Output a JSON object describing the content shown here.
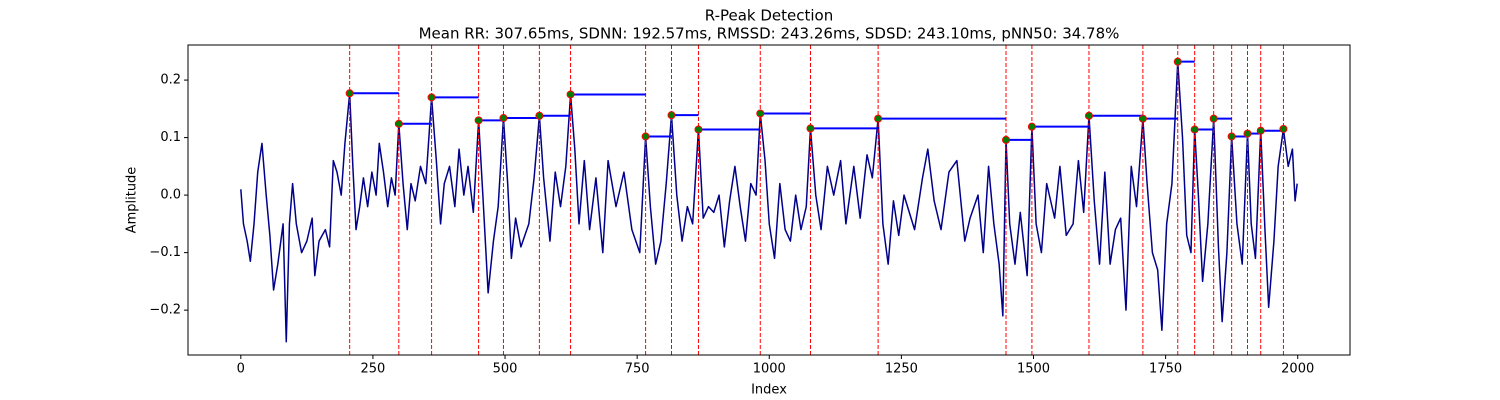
{
  "chart_data": {
    "type": "line",
    "title": "R-Peak Detection",
    "subtitle": "Mean RR: 307.65ms, SDNN: 192.57ms, RMSSD: 243.26ms, SDSD: 243.10ms, pNN50: 34.78%",
    "x_label": "Index",
    "y_label": "Amplitude",
    "xlim": [
      -99.95,
      2098.95
    ],
    "ylim": [
      -0.278,
      0.261
    ],
    "xticks": [
      0,
      250,
      500,
      750,
      1000,
      1250,
      1500,
      1750,
      2000
    ],
    "yticks": [
      {
        "value": -0.2,
        "label": "−0.2"
      },
      {
        "value": -0.1,
        "label": "−0.1"
      },
      {
        "value": 0,
        "label": "0.0"
      },
      0.1,
      0.2
    ],
    "series": [
      {
        "mode": "line",
        "color": "#00008b",
        "x": [
          0,
          5,
          12,
          18,
          25,
          32,
          40,
          48,
          55,
          62,
          70,
          80,
          86,
          92,
          98,
          105,
          115,
          125,
          135,
          140,
          148,
          160,
          168,
          175,
          182,
          190,
          197,
          206,
          212,
          218,
          225,
          232,
          240,
          248,
          256,
          262,
          270,
          278,
          285,
          292,
          299,
          307,
          315,
          322,
          330,
          340,
          350,
          361,
          370,
          378,
          385,
          395,
          405,
          413,
          422,
          430,
          440,
          450,
          458,
          468,
          478,
          487,
          497,
          505,
          512,
          520,
          530,
          545,
          555,
          565,
          573,
          585,
          595,
          605,
          615,
          624,
          632,
          640,
          650,
          660,
          672,
          685,
          695,
          710,
          725,
          740,
          755,
          766,
          775,
          785,
          795,
          805,
          815,
          825,
          835,
          845,
          855,
          866,
          875,
          885,
          895,
          905,
          915,
          925,
          935,
          945,
          955,
          965,
          975,
          983,
          992,
          1000,
          1010,
          1020,
          1030,
          1040,
          1050,
          1060,
          1070,
          1078,
          1088,
          1098,
          1110,
          1122,
          1135,
          1145,
          1160,
          1172,
          1185,
          1195,
          1206,
          1215,
          1225,
          1235,
          1245,
          1255,
          1265,
          1275,
          1290,
          1300,
          1312,
          1325,
          1340,
          1355,
          1370,
          1380,
          1395,
          1405,
          1415,
          1425,
          1435,
          1442,
          1448,
          1455,
          1465,
          1475,
          1488,
          1497,
          1505,
          1515,
          1525,
          1540,
          1550,
          1562,
          1575,
          1585,
          1595,
          1605,
          1615,
          1625,
          1635,
          1645,
          1655,
          1665,
          1675,
          1685,
          1695,
          1707,
          1715,
          1725,
          1735,
          1743,
          1752,
          1762,
          1773,
          1782,
          1790,
          1798,
          1805,
          1812,
          1820,
          1830,
          1841,
          1850,
          1857,
          1866,
          1875,
          1885,
          1895,
          1905,
          1912,
          1920,
          1930,
          1938,
          1945,
          1955,
          1963,
          1973,
          1982,
          1990,
          1995,
          1999
        ],
        "values": [
          0.01,
          -0.05,
          -0.08,
          -0.115,
          -0.05,
          0.04,
          0.09,
          0.0,
          -0.07,
          -0.165,
          -0.12,
          -0.05,
          -0.255,
          -0.05,
          0.02,
          -0.05,
          -0.1,
          -0.08,
          -0.04,
          -0.14,
          -0.08,
          -0.06,
          -0.09,
          0.06,
          0.04,
          0.0,
          0.09,
          0.177,
          0.05,
          -0.06,
          -0.02,
          0.03,
          -0.02,
          0.04,
          0.0,
          0.09,
          0.04,
          -0.02,
          0.03,
          0.0,
          0.124,
          0.02,
          -0.06,
          0.02,
          -0.01,
          0.05,
          0.02,
          0.17,
          0.06,
          -0.05,
          0.02,
          0.05,
          -0.02,
          0.08,
          0.0,
          0.05,
          -0.03,
          0.13,
          0.0,
          -0.17,
          -0.08,
          -0.02,
          0.134,
          0.02,
          -0.11,
          -0.04,
          -0.09,
          -0.05,
          0.03,
          0.138,
          0.03,
          -0.08,
          0.04,
          -0.02,
          0.05,
          0.175,
          0.08,
          -0.05,
          0.06,
          -0.06,
          0.03,
          -0.1,
          0.06,
          -0.02,
          0.04,
          -0.06,
          -0.1,
          0.102,
          -0.02,
          -0.12,
          -0.08,
          0.02,
          0.139,
          0.0,
          -0.08,
          -0.02,
          -0.05,
          0.114,
          -0.04,
          -0.02,
          -0.03,
          0.0,
          -0.09,
          -0.01,
          0.05,
          -0.02,
          -0.08,
          0.02,
          0.0,
          0.142,
          0.06,
          -0.05,
          -0.11,
          0.02,
          -0.06,
          -0.08,
          0.0,
          -0.06,
          -0.02,
          0.116,
          0.0,
          -0.06,
          0.05,
          0.0,
          0.06,
          -0.05,
          0.05,
          -0.04,
          0.07,
          0.03,
          0.133,
          -0.05,
          -0.12,
          -0.01,
          -0.07,
          0.0,
          -0.03,
          -0.06,
          0.03,
          0.08,
          -0.01,
          -0.06,
          0.04,
          0.06,
          -0.08,
          -0.04,
          0.0,
          -0.1,
          0.05,
          -0.05,
          -0.12,
          -0.21,
          0.096,
          -0.05,
          -0.12,
          -0.03,
          -0.14,
          0.119,
          -0.05,
          -0.1,
          0.02,
          -0.04,
          0.05,
          -0.07,
          -0.05,
          0.06,
          -0.03,
          0.138,
          -0.01,
          -0.12,
          0.04,
          -0.12,
          -0.06,
          -0.04,
          -0.2,
          0.05,
          -0.02,
          0.133,
          0.02,
          -0.1,
          -0.13,
          -0.235,
          -0.05,
          0.02,
          0.232,
          0.1,
          -0.07,
          -0.1,
          0.114,
          0.0,
          -0.15,
          -0.05,
          0.133,
          -0.09,
          -0.22,
          -0.1,
          0.102,
          -0.05,
          -0.12,
          0.107,
          -0.05,
          -0.11,
          0.112,
          -0.06,
          -0.195,
          -0.08,
          0.05,
          0.115,
          0.05,
          0.08,
          -0.01,
          0.02
        ]
      },
      {
        "mode": "peaks",
        "color": "green",
        "edge_color": "red",
        "interval_color": "blue",
        "vline_color": "red",
        "x": [
          206,
          299,
          361,
          450,
          497,
          565,
          624,
          766,
          815,
          866,
          983,
          1078,
          1206,
          1448,
          1497,
          1605,
          1707,
          1773,
          1805,
          1841,
          1875,
          1905,
          1930,
          1973
        ],
        "values": [
          0.177,
          0.124,
          0.17,
          0.13,
          0.134,
          0.138,
          0.175,
          0.102,
          0.139,
          0.114,
          0.142,
          0.116,
          0.133,
          0.096,
          0.119,
          0.138,
          0.133,
          0.232,
          0.114,
          0.133,
          0.102,
          0.107,
          0.112,
          0.115
        ]
      }
    ]
  }
}
